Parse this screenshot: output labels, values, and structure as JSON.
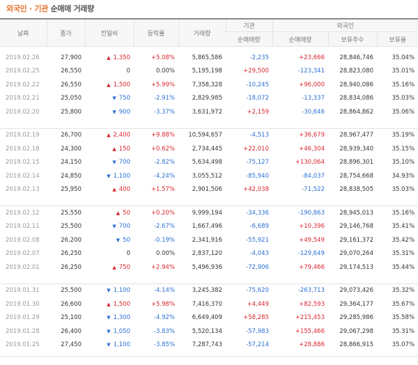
{
  "title": {
    "part1": "외국인 · 기관",
    "part2": "순매매 거래량"
  },
  "headers": {
    "date": "날짜",
    "close": "종가",
    "change": "전일비",
    "rate": "등락률",
    "volume": "거래량",
    "inst_group": "기관",
    "foreign_group": "외국인",
    "inst_net": "순매매량",
    "foreign_net": "순매매량",
    "foreign_hold": "보유주수",
    "foreign_ratio": "보유율"
  },
  "groups": [
    {
      "rows": [
        {
          "date": "2019.02.26",
          "close": "27,900",
          "dir": "up",
          "change": "1,350",
          "rate": "+5.08%",
          "volume": "5,865,586",
          "inst": "-2,235",
          "foreign": "+23,666",
          "hold": "28,846,746",
          "ratio": "35.04%"
        },
        {
          "date": "2019.02.25",
          "close": "26,550",
          "dir": "none",
          "change": "0",
          "rate": "0.00%",
          "volume": "5,195,198",
          "inst": "+29,500",
          "foreign": "-123,341",
          "hold": "28,823,080",
          "ratio": "35.01%"
        },
        {
          "date": "2019.02.22",
          "close": "26,550",
          "dir": "up",
          "change": "1,500",
          "rate": "+5.99%",
          "volume": "7,358,328",
          "inst": "-10,245",
          "foreign": "+96,000",
          "hold": "28,940,086",
          "ratio": "35.16%"
        },
        {
          "date": "2019.02.21",
          "close": "25,050",
          "dir": "down",
          "change": "750",
          "rate": "-2.91%",
          "volume": "2,829,985",
          "inst": "-18,072",
          "foreign": "-13,337",
          "hold": "28,834,086",
          "ratio": "35.03%"
        },
        {
          "date": "2019.02.20",
          "close": "25,800",
          "dir": "down",
          "change": "900",
          "rate": "-3.37%",
          "volume": "3,631,972",
          "inst": "+2,159",
          "foreign": "-30,646",
          "hold": "28,864,862",
          "ratio": "35.06%"
        }
      ]
    },
    {
      "rows": [
        {
          "date": "2019.02.19",
          "close": "26,700",
          "dir": "up",
          "change": "2,400",
          "rate": "+9.88%",
          "volume": "10,594,657",
          "inst": "-4,513",
          "foreign": "+36,679",
          "hold": "28,967,477",
          "ratio": "35.19%"
        },
        {
          "date": "2019.02.18",
          "close": "24,300",
          "dir": "up",
          "change": "150",
          "rate": "+0.62%",
          "volume": "2,734,445",
          "inst": "+22,010",
          "foreign": "+46,304",
          "hold": "28,939,340",
          "ratio": "35.15%"
        },
        {
          "date": "2019.02.15",
          "close": "24,150",
          "dir": "down",
          "change": "700",
          "rate": "-2.82%",
          "volume": "5,634,498",
          "inst": "-75,127",
          "foreign": "+130,064",
          "hold": "28,896,301",
          "ratio": "35.10%"
        },
        {
          "date": "2019.02.14",
          "close": "24,850",
          "dir": "down",
          "change": "1,100",
          "rate": "-4.24%",
          "volume": "3,055,512",
          "inst": "-85,940",
          "foreign": "-84,037",
          "hold": "28,754,668",
          "ratio": "34.93%"
        },
        {
          "date": "2019.02.13",
          "close": "25,950",
          "dir": "up",
          "change": "400",
          "rate": "+1.57%",
          "volume": "2,901,506",
          "inst": "+42,038",
          "foreign": "-71,522",
          "hold": "28,838,505",
          "ratio": "35.03%"
        }
      ]
    },
    {
      "rows": [
        {
          "date": "2019.02.12",
          "close": "25,550",
          "dir": "up",
          "change": "50",
          "rate": "+0.20%",
          "volume": "9,999,194",
          "inst": "-34,336",
          "foreign": "-190,863",
          "hold": "28,945,013",
          "ratio": "35.16%"
        },
        {
          "date": "2019.02.11",
          "close": "25,500",
          "dir": "down",
          "change": "700",
          "rate": "-2.67%",
          "volume": "1,667,496",
          "inst": "-6,689",
          "foreign": "+10,396",
          "hold": "29,146,768",
          "ratio": "35.41%"
        },
        {
          "date": "2019.02.08",
          "close": "26,200",
          "dir": "down",
          "change": "50",
          "rate": "-0.19%",
          "volume": "2,341,916",
          "inst": "-55,921",
          "foreign": "+49,549",
          "hold": "29,161,372",
          "ratio": "35.42%"
        },
        {
          "date": "2019.02.07",
          "close": "26,250",
          "dir": "none",
          "change": "0",
          "rate": "0.00%",
          "volume": "2,837,120",
          "inst": "-4,043",
          "foreign": "-129,649",
          "hold": "29,070,264",
          "ratio": "35.31%"
        },
        {
          "date": "2019.02.01",
          "close": "26,250",
          "dir": "up",
          "change": "750",
          "rate": "+2.94%",
          "volume": "5,496,936",
          "inst": "-72,906",
          "foreign": "+79,466",
          "hold": "29,174,513",
          "ratio": "35.44%"
        }
      ]
    },
    {
      "rows": [
        {
          "date": "2019.01.31",
          "close": "25,500",
          "dir": "down",
          "change": "1,100",
          "rate": "-4.14%",
          "volume": "3,245,382",
          "inst": "-75,620",
          "foreign": "-263,713",
          "hold": "29,073,426",
          "ratio": "35.32%"
        },
        {
          "date": "2019.01.30",
          "close": "26,600",
          "dir": "up",
          "change": "1,500",
          "rate": "+5.98%",
          "volume": "7,416,370",
          "inst": "+4,449",
          "foreign": "+82,593",
          "hold": "29,364,177",
          "ratio": "35.67%"
        },
        {
          "date": "2019.01.29",
          "close": "25,100",
          "dir": "down",
          "change": "1,300",
          "rate": "-4.92%",
          "volume": "6,649,409",
          "inst": "+58,285",
          "foreign": "+215,453",
          "hold": "29,285,986",
          "ratio": "35.58%"
        },
        {
          "date": "2019.01.28",
          "close": "26,400",
          "dir": "down",
          "change": "1,050",
          "rate": "-3.83%",
          "volume": "5,520,134",
          "inst": "-57,983",
          "foreign": "+155,466",
          "hold": "29,067,298",
          "ratio": "35.31%"
        },
        {
          "date": "2019.01.25",
          "close": "27,450",
          "dir": "down",
          "change": "1,100",
          "rate": "-3.85%",
          "volume": "7,287,743",
          "inst": "-57,214",
          "foreign": "+28,886",
          "hold": "28,866,915",
          "ratio": "35.07%"
        }
      ]
    }
  ],
  "colors": {
    "up": "#d9252d",
    "down": "#2a6fd6",
    "accent": "#e8712a"
  }
}
